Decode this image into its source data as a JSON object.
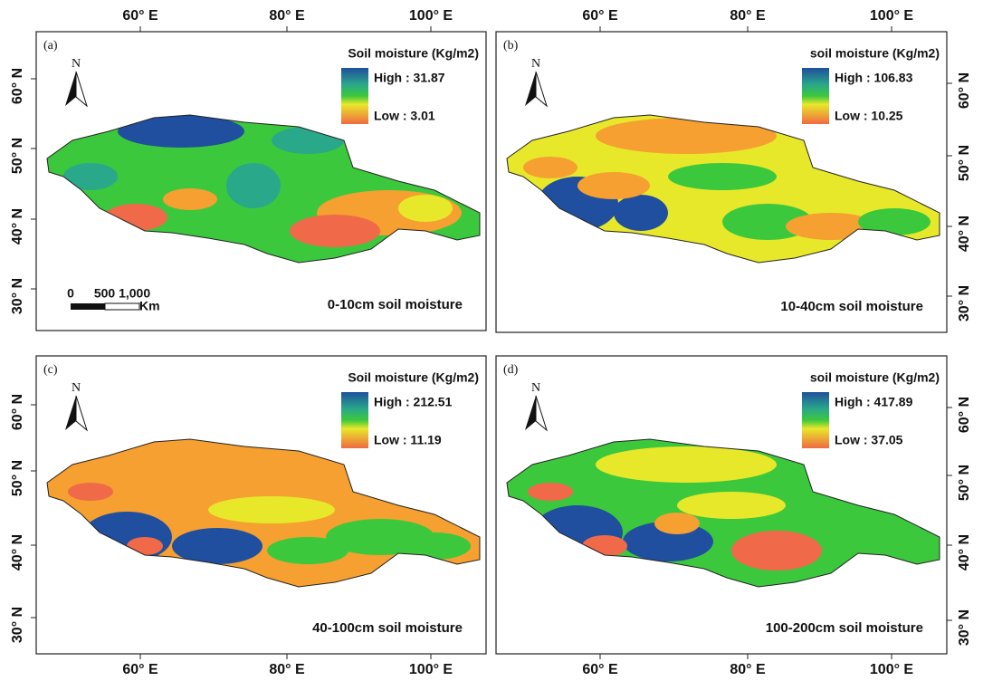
{
  "panels": [
    {
      "label": "(a)",
      "north": "N",
      "legend_title": "Soil moisture (Kg/m2)",
      "high": "High : 31.87",
      "low": "Low : 3.01",
      "caption": "0-10cm soil moisture",
      "lon_labels": [
        "60° E",
        "80° E",
        "100° E"
      ],
      "lat_labels": [
        "60° N",
        "50° N",
        "40° N",
        "30° N"
      ]
    },
    {
      "label": "(b)",
      "north": "N",
      "legend_title": "soil moisture (Kg/m2)",
      "high": "High : 106.83",
      "low": "Low : 10.25",
      "caption": "10-40cm soil moisture",
      "lon_labels": [
        "60° E",
        "80° E",
        "100° E"
      ],
      "lat_labels": [
        "60° N",
        "50° N",
        "40° N",
        "30° N"
      ]
    },
    {
      "label": "(c)",
      "north": "N",
      "legend_title": "Soil moisture (Kg/m2)",
      "high": "High : 212.51",
      "low": "Low : 11.19",
      "caption": "40-100cm soil moisture",
      "lon_labels": [
        "60° E",
        "80° E",
        "100° E"
      ],
      "lat_labels": [
        "60° N",
        "50° N",
        "40° N",
        "30° N"
      ]
    },
    {
      "label": "(d)",
      "north": "N",
      "legend_title": "soil moisture (Kg/m2)",
      "high": "High : 417.89",
      "low": "Low : 37.05",
      "caption": "100-200cm soil moisture",
      "lon_labels": [
        "60° E",
        "80° E",
        "100° E"
      ],
      "lat_labels": [
        "60° N",
        "50° N",
        "40° N",
        "30° N"
      ]
    }
  ],
  "scale_bar": {
    "labels": [
      "0",
      "500 1,000",
      "Km"
    ]
  }
}
